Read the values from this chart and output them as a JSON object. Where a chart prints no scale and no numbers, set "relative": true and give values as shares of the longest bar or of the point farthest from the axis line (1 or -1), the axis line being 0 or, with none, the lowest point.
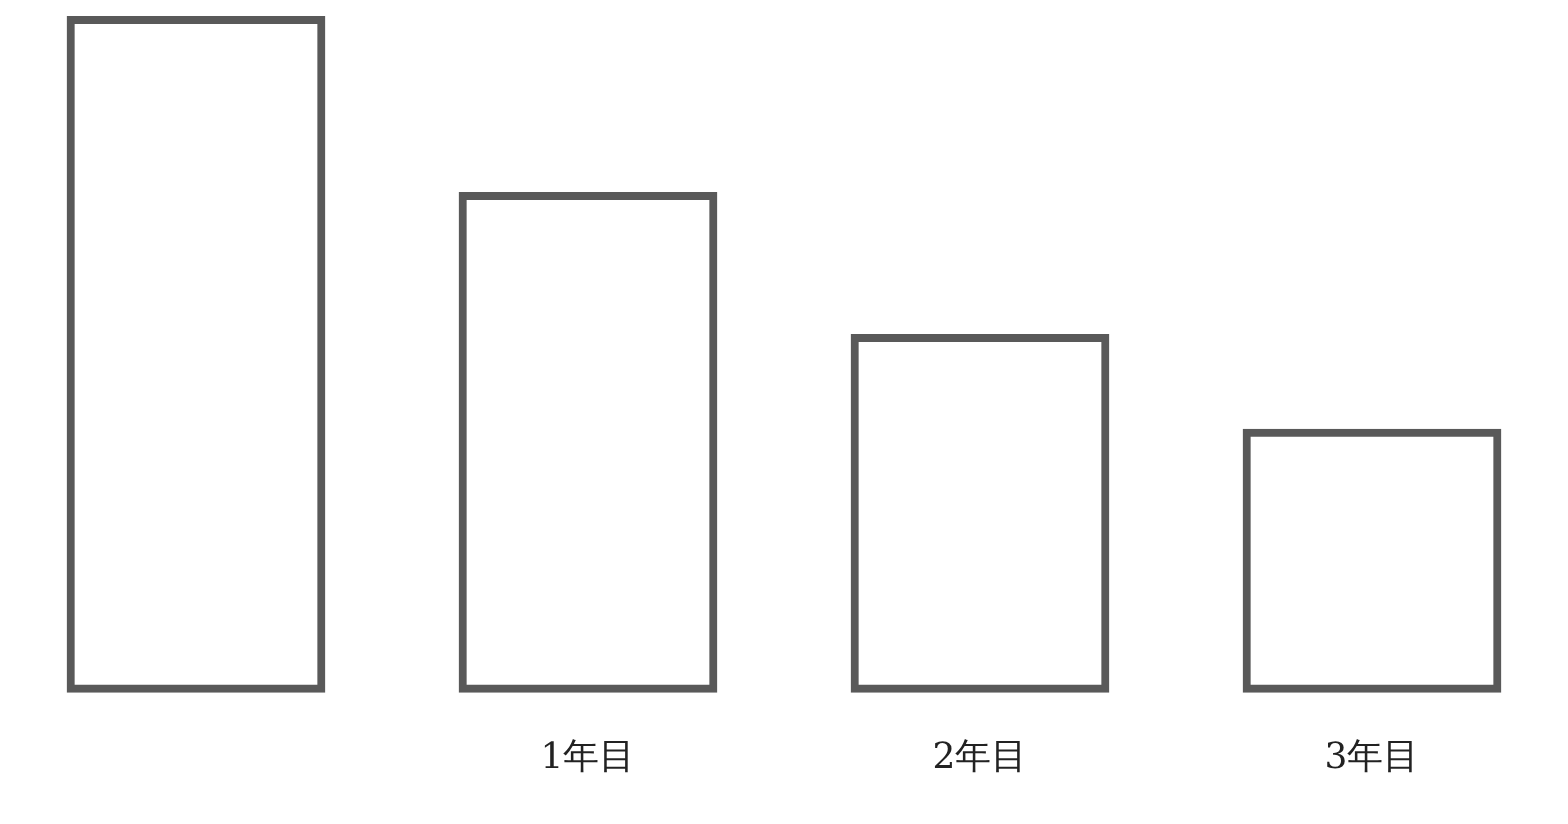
{
  "chart_data": {
    "type": "bar",
    "relative": true,
    "categories": [
      null,
      "1年目",
      "2年目",
      "3年目"
    ],
    "values": [
      1,
      0.74,
      0.53,
      0.39
    ],
    "color": "#595959"
  }
}
